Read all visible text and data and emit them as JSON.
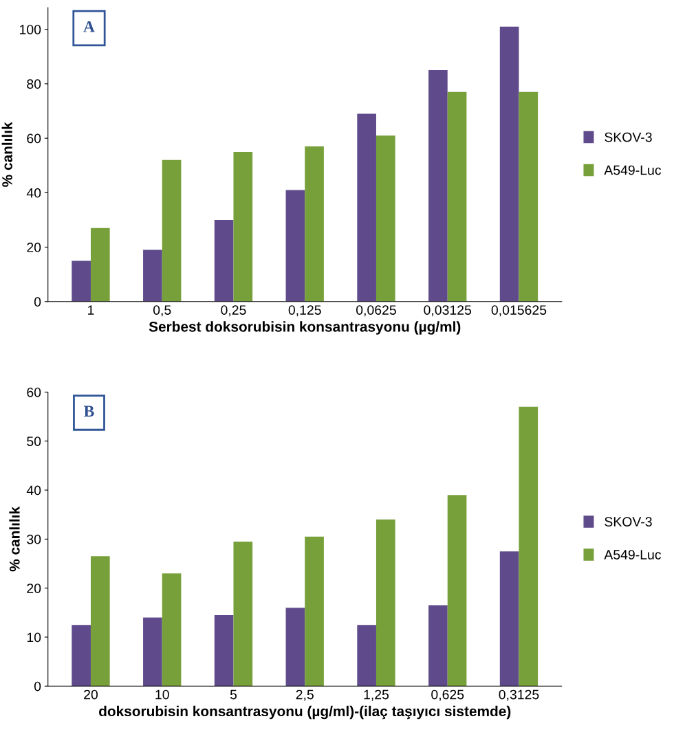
{
  "chart_data": [
    {
      "type": "bar",
      "annotations": [
        "A"
      ],
      "xlabel": "Serbest doksorubisin konsantrasyonu (µg/ml)",
      "ylabel": "% canlılık",
      "categories": [
        "1",
        "0,5",
        "0,25",
        "0,125",
        "0,0625",
        "0,03125",
        "0,015625"
      ],
      "series": [
        {
          "name": "SKOV-3",
          "color": "#5f4b8b",
          "values": [
            15,
            19,
            30,
            41,
            69,
            85,
            101
          ]
        },
        {
          "name": "A549-Luc",
          "color": "#77a03a",
          "values": [
            27,
            52,
            55,
            57,
            61,
            77,
            77
          ]
        }
      ],
      "ylim": [
        0,
        108
      ],
      "yticks": [
        0,
        20,
        40,
        60,
        80,
        100
      ],
      "grid": false,
      "legend": "right"
    },
    {
      "type": "bar",
      "annotations": [
        "B"
      ],
      "xlabel": "doksorubisin konsantrasyonu (µg/ml)-(ilaç taşıyıcı sistemde)",
      "ylabel": "% canlılık",
      "categories": [
        "20",
        "10",
        "5",
        "2,5",
        "1,25",
        "0,625",
        "0,3125"
      ],
      "series": [
        {
          "name": "SKOV-3",
          "color": "#5f4b8b",
          "values": [
            12.5,
            14,
            14.5,
            16,
            12.5,
            16.5,
            27.5
          ]
        },
        {
          "name": "A549-Luc",
          "color": "#77a03a",
          "values": [
            26.5,
            23,
            29.5,
            30.5,
            34,
            39,
            57
          ]
        }
      ],
      "ylim": [
        0,
        60
      ],
      "yticks": [
        0,
        10,
        20,
        30,
        40,
        50,
        60
      ],
      "grid": false,
      "legend": "right"
    }
  ]
}
